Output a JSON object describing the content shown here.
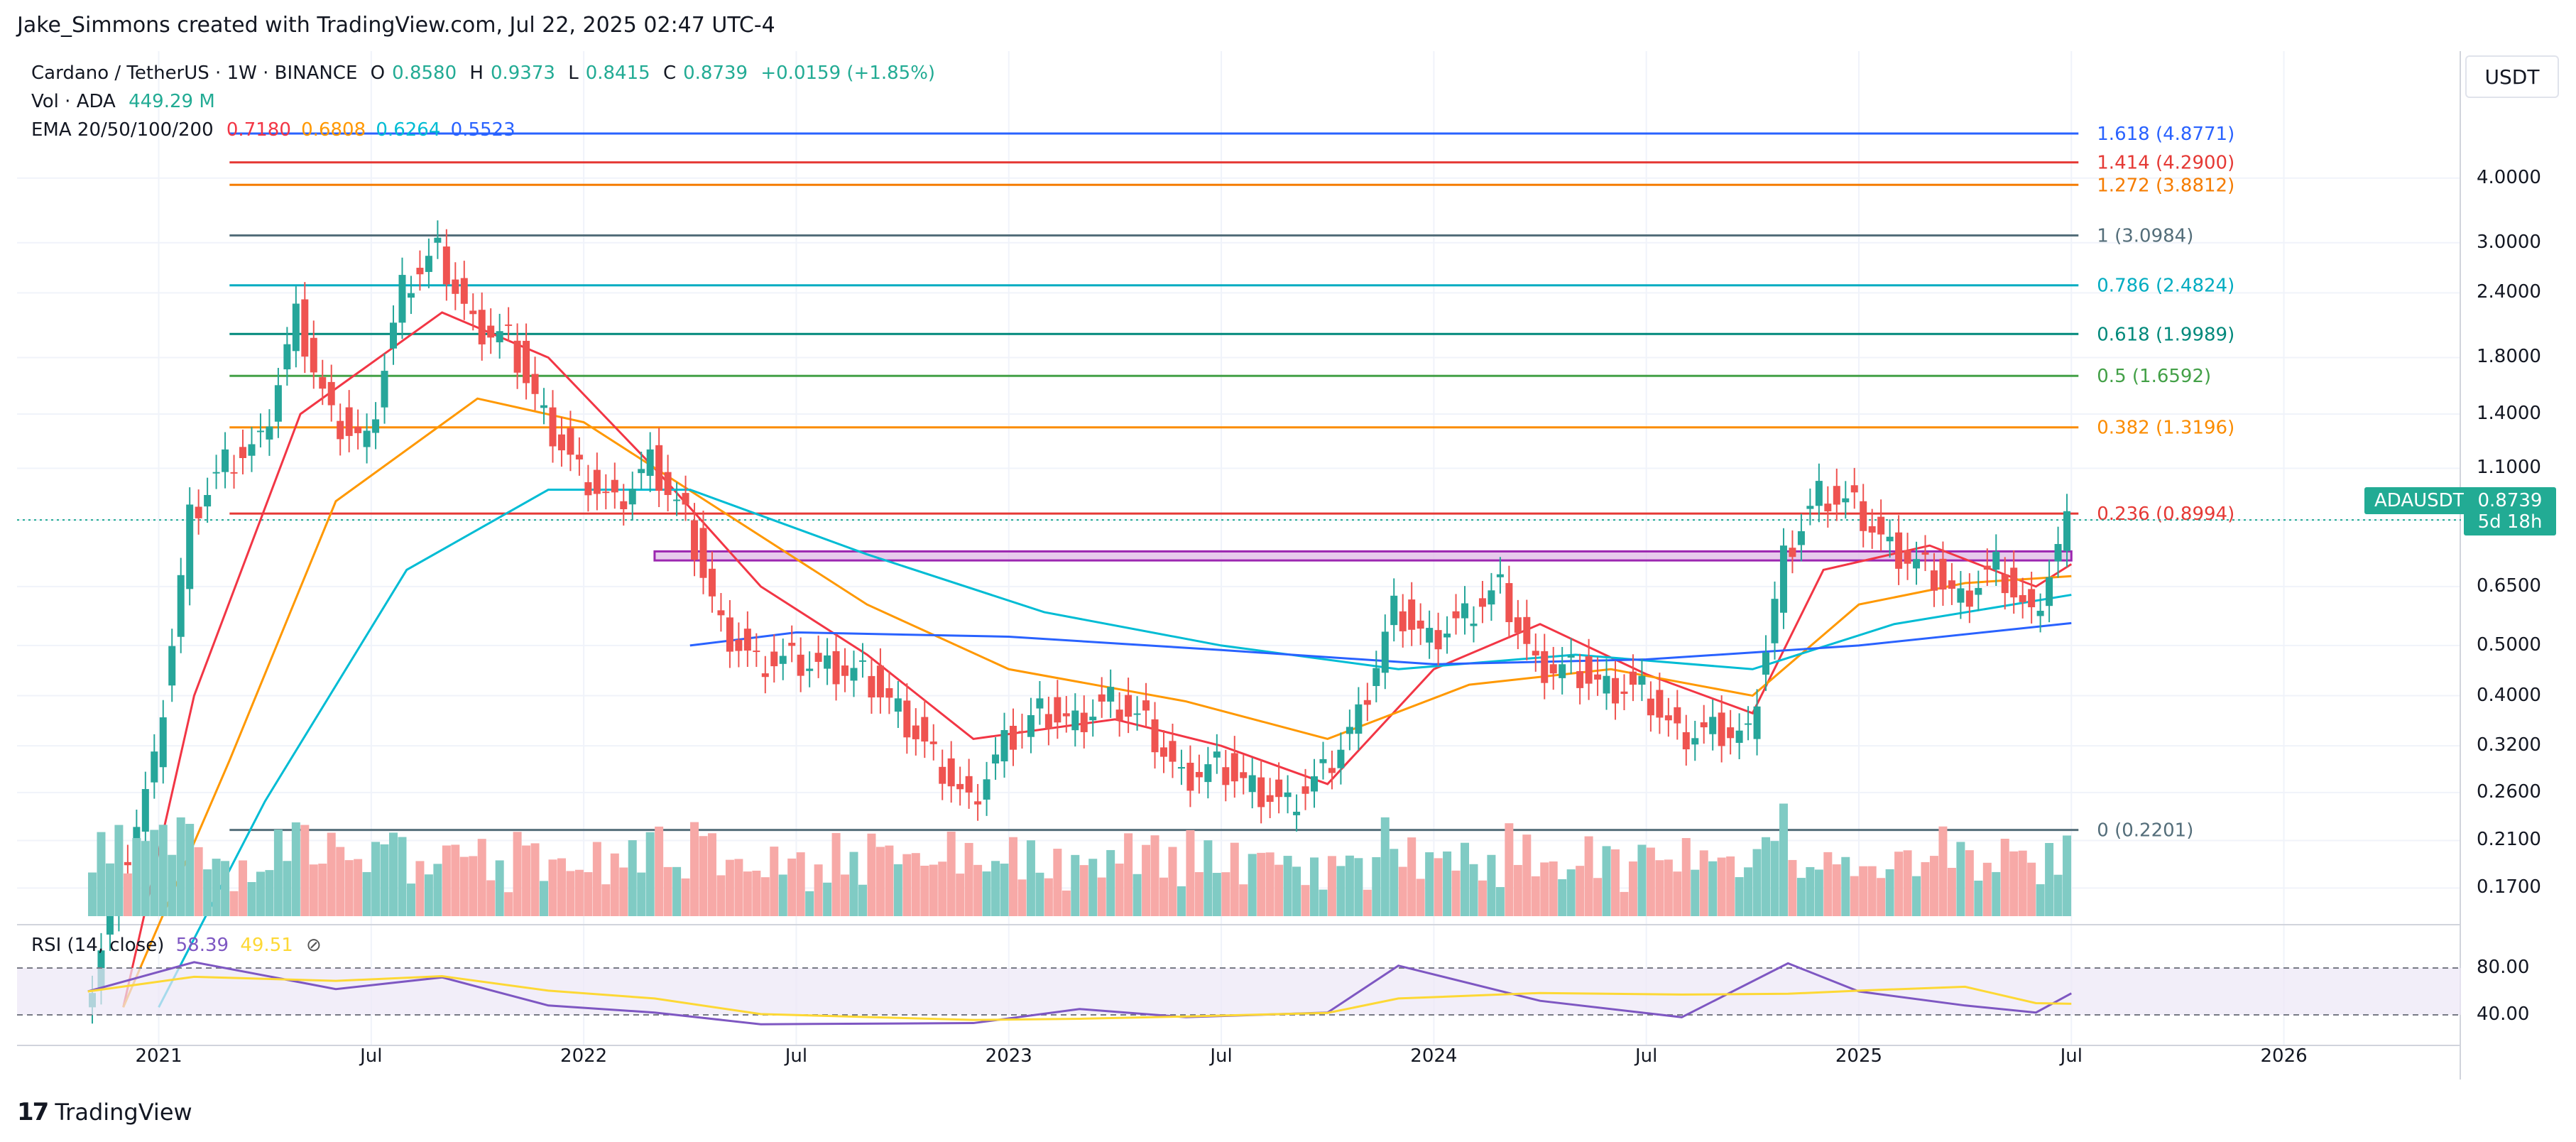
{
  "caption": "Jake_Simmons created with TradingView.com, Jul 22, 2025 02:47 UTC-4",
  "legend": {
    "symbol_line": "Cardano / TetherUS · 1W · BINANCE",
    "o_label": "O",
    "o_value": "0.8580",
    "h_label": "H",
    "h_value": "0.9373",
    "l_label": "L",
    "l_value": "0.8415",
    "c_label": "C",
    "c_value": "0.8739",
    "change": "+0.0159 (+1.85%)",
    "vol_label": "Vol · ADA",
    "vol_value": "449.29 M",
    "ema_label": "EMA 20/50/100/200",
    "ema_values": [
      "0.7180",
      "0.6808",
      "0.6264",
      "0.5523"
    ]
  },
  "currency": "USDT",
  "symbol_badge": "ADAUSDT",
  "price_badge": {
    "price": "0.8739",
    "countdown": "5d 18h"
  },
  "rsi_legend": {
    "label": "RSI (14, close)",
    "value": "58.39",
    "ma_value": "49.51"
  },
  "logo_text": "TradingView",
  "colors": {
    "up": "#26a69a",
    "down": "#ef5350",
    "ema20": "#f23645",
    "ema50": "#ff9800",
    "ema100": "#00bcd4",
    "ema200": "#2962ff",
    "rsi": "#7e57c2",
    "rsi_ma": "#fdd835",
    "badge": "#22ab94"
  },
  "chart_data": {
    "type": "candlestick",
    "symbol": "Cardano / TetherUS",
    "interval": "1W",
    "exchange": "BINANCE",
    "scale": "log",
    "ylim": [
      0.15,
      6.2
    ],
    "y_ticks": [
      "4.0000",
      "3.0000",
      "2.4000",
      "1.8000",
      "1.4000",
      "1.1000",
      "0.8739",
      "0.6500",
      "0.5000",
      "0.4000",
      "0.3200",
      "0.2600",
      "0.2100",
      "0.1700"
    ],
    "x_ticks": [
      "2021",
      "Jul",
      "2022",
      "Jul",
      "2023",
      "Jul",
      "2024",
      "Jul",
      "2025",
      "Jul",
      "2026"
    ],
    "x_range": [
      "2020-09",
      "2026-06"
    ],
    "price_path": [
      [
        "2020-11",
        0.1
      ],
      [
        "2020-12",
        0.18
      ],
      [
        "2021-01",
        0.3
      ],
      [
        "2021-02",
        0.9
      ],
      [
        "2021-03",
        1.15
      ],
      [
        "2021-04",
        1.25
      ],
      [
        "2021-05",
        2.2
      ],
      [
        "2021-06",
        1.4
      ],
      [
        "2021-07",
        1.25
      ],
      [
        "2021-08",
        2.5
      ],
      [
        "2021-09",
        2.95
      ],
      [
        "2021-10",
        2.1
      ],
      [
        "2021-11",
        2.0
      ],
      [
        "2021-12",
        1.4
      ],
      [
        "2022-01",
        1.1
      ],
      [
        "2022-02",
        0.95
      ],
      [
        "2022-03",
        1.15
      ],
      [
        "2022-04",
        0.9
      ],
      [
        "2022-05",
        0.55
      ],
      [
        "2022-06",
        0.47
      ],
      [
        "2022-07",
        0.48
      ],
      [
        "2022-08",
        0.46
      ],
      [
        "2022-09",
        0.45
      ],
      [
        "2022-10",
        0.38
      ],
      [
        "2022-11",
        0.31
      ],
      [
        "2022-12",
        0.25
      ],
      [
        "2023-01",
        0.33
      ],
      [
        "2023-02",
        0.38
      ],
      [
        "2023-03",
        0.36
      ],
      [
        "2023-04",
        0.4
      ],
      [
        "2023-05",
        0.36
      ],
      [
        "2023-06",
        0.28
      ],
      [
        "2023-07",
        0.3
      ],
      [
        "2023-08",
        0.27
      ],
      [
        "2023-09",
        0.25
      ],
      [
        "2023-10",
        0.29
      ],
      [
        "2023-11",
        0.37
      ],
      [
        "2023-12",
        0.6
      ],
      [
        "2024-01",
        0.52
      ],
      [
        "2024-02",
        0.58
      ],
      [
        "2024-03",
        0.66
      ],
      [
        "2024-04",
        0.46
      ],
      [
        "2024-05",
        0.46
      ],
      [
        "2024-06",
        0.42
      ],
      [
        "2024-07",
        0.42
      ],
      [
        "2024-08",
        0.34
      ],
      [
        "2024-09",
        0.35
      ],
      [
        "2024-10",
        0.34
      ],
      [
        "2024-11",
        0.75
      ],
      [
        "2024-12",
        1.0
      ],
      [
        "2025-01",
        0.95
      ],
      [
        "2025-02",
        0.78
      ],
      [
        "2025-03",
        0.72
      ],
      [
        "2025-04",
        0.62
      ],
      [
        "2025-05",
        0.73
      ],
      [
        "2025-06",
        0.57
      ],
      [
        "2025-07",
        0.8739
      ]
    ],
    "ema_series": {
      "EMA20": [
        [
          "2020-12",
          0.1
        ],
        [
          "2021-02",
          0.4
        ],
        [
          "2021-05",
          1.4
        ],
        [
          "2021-09",
          2.2
        ],
        [
          "2021-12",
          1.8
        ],
        [
          "2022-03",
          1.1
        ],
        [
          "2022-06",
          0.65
        ],
        [
          "2022-09",
          0.48
        ],
        [
          "2022-12",
          0.33
        ],
        [
          "2023-04",
          0.36
        ],
        [
          "2023-07",
          0.32
        ],
        [
          "2023-10",
          0.27
        ],
        [
          "2024-01",
          0.45
        ],
        [
          "2024-04",
          0.55
        ],
        [
          "2024-07",
          0.44
        ],
        [
          "2024-10",
          0.37
        ],
        [
          "2024-12",
          0.7
        ],
        [
          "2025-03",
          0.78
        ],
        [
          "2025-06",
          0.65
        ],
        [
          "2025-07",
          0.718
        ]
      ],
      "EMA50": [
        [
          "2020-12",
          0.1
        ],
        [
          "2021-03",
          0.3
        ],
        [
          "2021-06",
          0.95
        ],
        [
          "2021-10",
          1.5
        ],
        [
          "2022-01",
          1.35
        ],
        [
          "2022-05",
          0.9
        ],
        [
          "2022-09",
          0.6
        ],
        [
          "2023-01",
          0.45
        ],
        [
          "2023-06",
          0.39
        ],
        [
          "2023-10",
          0.33
        ],
        [
          "2024-02",
          0.42
        ],
        [
          "2024-06",
          0.45
        ],
        [
          "2024-10",
          0.4
        ],
        [
          "2025-01",
          0.6
        ],
        [
          "2025-04",
          0.66
        ],
        [
          "2025-07",
          0.6808
        ]
      ],
      "EMA100": [
        [
          "2021-01",
          0.1
        ],
        [
          "2021-04",
          0.25
        ],
        [
          "2021-08",
          0.7
        ],
        [
          "2021-12",
          1.0
        ],
        [
          "2022-04",
          1.0
        ],
        [
          "2022-09",
          0.75
        ],
        [
          "2023-02",
          0.58
        ],
        [
          "2023-07",
          0.5
        ],
        [
          "2023-12",
          0.45
        ],
        [
          "2024-05",
          0.48
        ],
        [
          "2024-10",
          0.45
        ],
        [
          "2025-02",
          0.55
        ],
        [
          "2025-07",
          0.6264
        ]
      ],
      "EMA200": [
        [
          "2022-04",
          0.5
        ],
        [
          "2022-07",
          0.53
        ],
        [
          "2023-01",
          0.52
        ],
        [
          "2023-07",
          0.49
        ],
        [
          "2024-01",
          0.46
        ],
        [
          "2024-07",
          0.47
        ],
        [
          "2025-01",
          0.5
        ],
        [
          "2025-07",
          0.5523
        ]
      ]
    },
    "fibonacci": [
      {
        "label": "1.618 (4.8771)",
        "value": 4.8771,
        "color": "#2962ff"
      },
      {
        "label": "1.414 (4.2900)",
        "value": 4.29,
        "color": "#e53935"
      },
      {
        "label": "1.272 (3.8812)",
        "value": 3.8812,
        "color": "#f57c00"
      },
      {
        "label": "1 (3.0984)",
        "value": 3.0984,
        "color": "#546e7a"
      },
      {
        "label": "0.786 (2.4824)",
        "value": 2.4824,
        "color": "#00acc1"
      },
      {
        "label": "0.618 (1.9989)",
        "value": 1.9989,
        "color": "#00897b"
      },
      {
        "label": "0.5 (1.6592)",
        "value": 1.6592,
        "color": "#43a047"
      },
      {
        "label": "0.382 (1.3196)",
        "value": 1.3196,
        "color": "#fb8c00"
      },
      {
        "label": "0.236 (0.8994)",
        "value": 0.8994,
        "color": "#e53935"
      },
      {
        "label": "0 (0.2201)",
        "value": 0.2201,
        "color": "#546e7a"
      }
    ],
    "support_zone": {
      "from": "2022-03",
      "to": "2025-07",
      "low": 0.73,
      "high": 0.76
    },
    "rsi": {
      "levels": [
        "80.00",
        "40.00"
      ],
      "path": [
        [
          "2020-11",
          60
        ],
        [
          "2021-02",
          85
        ],
        [
          "2021-06",
          62
        ],
        [
          "2021-09",
          72
        ],
        [
          "2021-12",
          48
        ],
        [
          "2022-03",
          42
        ],
        [
          "2022-06",
          32
        ],
        [
          "2022-12",
          33
        ],
        [
          "2023-03",
          45
        ],
        [
          "2023-06",
          38
        ],
        [
          "2023-10",
          42
        ],
        [
          "2023-12",
          82
        ],
        [
          "2024-04",
          52
        ],
        [
          "2024-08",
          38
        ],
        [
          "2024-11",
          84
        ],
        [
          "2025-01",
          60
        ],
        [
          "2025-04",
          48
        ],
        [
          "2025-06",
          42
        ],
        [
          "2025-07",
          58.39
        ]
      ]
    }
  }
}
